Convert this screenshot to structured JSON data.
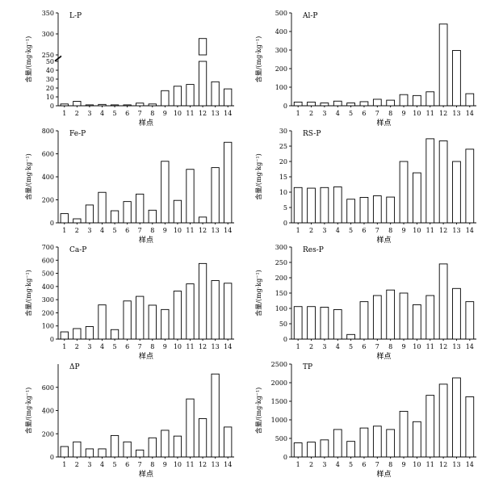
{
  "chart_data": [
    {
      "type": "bar",
      "title": "L-P",
      "xlabel": "样点",
      "ylabel": "含量/(mg·kg⁻¹)",
      "categories": [
        "1",
        "2",
        "3",
        "4",
        "5",
        "6",
        "7",
        "8",
        "9",
        "10",
        "11",
        "12",
        "13",
        "14"
      ],
      "values": [
        2,
        5,
        1,
        1.5,
        1,
        1,
        3,
        2,
        17,
        22,
        24,
        289,
        27,
        19
      ],
      "axis_break": {
        "lower": [
          0,
          50
        ],
        "upper": [
          250,
          350
        ]
      },
      "yticks_lower": [
        0,
        10,
        20,
        30,
        40,
        50
      ],
      "yticks_upper": [
        250,
        300,
        350
      ]
    },
    {
      "type": "bar",
      "title": "Al-P",
      "xlabel": "样点",
      "ylabel": "含量/(mg·kg⁻¹)",
      "categories": [
        "1",
        "2",
        "3",
        "4",
        "5",
        "6",
        "7",
        "8",
        "9",
        "10",
        "11",
        "12",
        "13",
        "14"
      ],
      "values": [
        20,
        20,
        15,
        25,
        15,
        22,
        35,
        30,
        60,
        55,
        75,
        440,
        298,
        65
      ],
      "ylim": [
        0,
        500
      ],
      "yticks": [
        0,
        100,
        200,
        300,
        400,
        500
      ]
    },
    {
      "type": "bar",
      "title": "Fe-P",
      "xlabel": "样点",
      "ylabel": "含量/(mg·kg⁻¹)",
      "categories": [
        "1",
        "2",
        "3",
        "4",
        "5",
        "6",
        "7",
        "8",
        "9",
        "10",
        "11",
        "12",
        "13",
        "14"
      ],
      "values": [
        80,
        35,
        155,
        265,
        105,
        185,
        250,
        110,
        535,
        195,
        465,
        50,
        480,
        700
      ],
      "ylim": [
        0,
        800
      ],
      "yticks": [
        0,
        200,
        400,
        600,
        800
      ]
    },
    {
      "type": "bar",
      "title": "RS-P",
      "xlabel": "样点",
      "ylabel": "含量/(mg·kg⁻¹)",
      "categories": [
        "1",
        "2",
        "3",
        "4",
        "5",
        "6",
        "7",
        "8",
        "9",
        "10",
        "11",
        "12",
        "13",
        "14"
      ],
      "values": [
        11.5,
        11.3,
        11.5,
        11.7,
        7.7,
        8.3,
        8.8,
        8.4,
        20,
        16.3,
        27.4,
        26.7,
        20,
        24
      ],
      "ylim": [
        0,
        30
      ],
      "yticks": [
        0,
        5,
        10,
        15,
        20,
        25,
        30
      ]
    },
    {
      "type": "bar",
      "title": "Ca-P",
      "xlabel": "样点",
      "ylabel": "含量/(mg·kg⁻¹)",
      "categories": [
        "1",
        "2",
        "3",
        "4",
        "5",
        "6",
        "7",
        "8",
        "9",
        "10",
        "11",
        "12",
        "13",
        "14"
      ],
      "values": [
        55,
        80,
        95,
        260,
        72,
        290,
        325,
        258,
        225,
        365,
        420,
        575,
        445,
        425
      ],
      "ylim": [
        0,
        700
      ],
      "yticks": [
        0,
        100,
        200,
        300,
        400,
        500,
        600,
        700
      ]
    },
    {
      "type": "bar",
      "title": "Res-P",
      "xlabel": "样点",
      "ylabel": "含量/(mg·kg⁻¹)",
      "categories": [
        "1",
        "2",
        "3",
        "4",
        "5",
        "6",
        "7",
        "8",
        "9",
        "10",
        "11",
        "12",
        "13",
        "14"
      ],
      "values": [
        106,
        106,
        104,
        96,
        15,
        122,
        142,
        160,
        150,
        112,
        142,
        245,
        165,
        122
      ],
      "ylim": [
        0,
        300
      ],
      "yticks": [
        0,
        50,
        100,
        150,
        200,
        250,
        300
      ]
    },
    {
      "type": "bar",
      "title": "ΔP",
      "xlabel": "样点",
      "ylabel": "含量/(mg·kg⁻¹)",
      "categories": [
        "1",
        "2",
        "3",
        "4",
        "5",
        "6",
        "7",
        "8",
        "9",
        "10",
        "11",
        "12",
        "13",
        "14"
      ],
      "values": [
        90,
        130,
        70,
        70,
        185,
        130,
        60,
        165,
        230,
        180,
        500,
        330,
        715,
        258
      ],
      "ylim": [
        0,
        800
      ],
      "yticks": [
        0,
        200,
        400,
        600
      ]
    },
    {
      "type": "bar",
      "title": "TP",
      "xlabel": "样点",
      "ylabel": "含量/(mg·kg⁻¹)",
      "categories": [
        "1",
        "2",
        "3",
        "4",
        "5",
        "6",
        "7",
        "8",
        "9",
        "10",
        "11",
        "12",
        "13",
        "14"
      ],
      "values": [
        380,
        400,
        460,
        740,
        420,
        780,
        830,
        740,
        1230,
        950,
        1660,
        1960,
        2130,
        1620
      ],
      "ylim": [
        0,
        2500
      ],
      "yticks": [
        0,
        500,
        1000,
        1500,
        2000,
        2500
      ]
    }
  ]
}
